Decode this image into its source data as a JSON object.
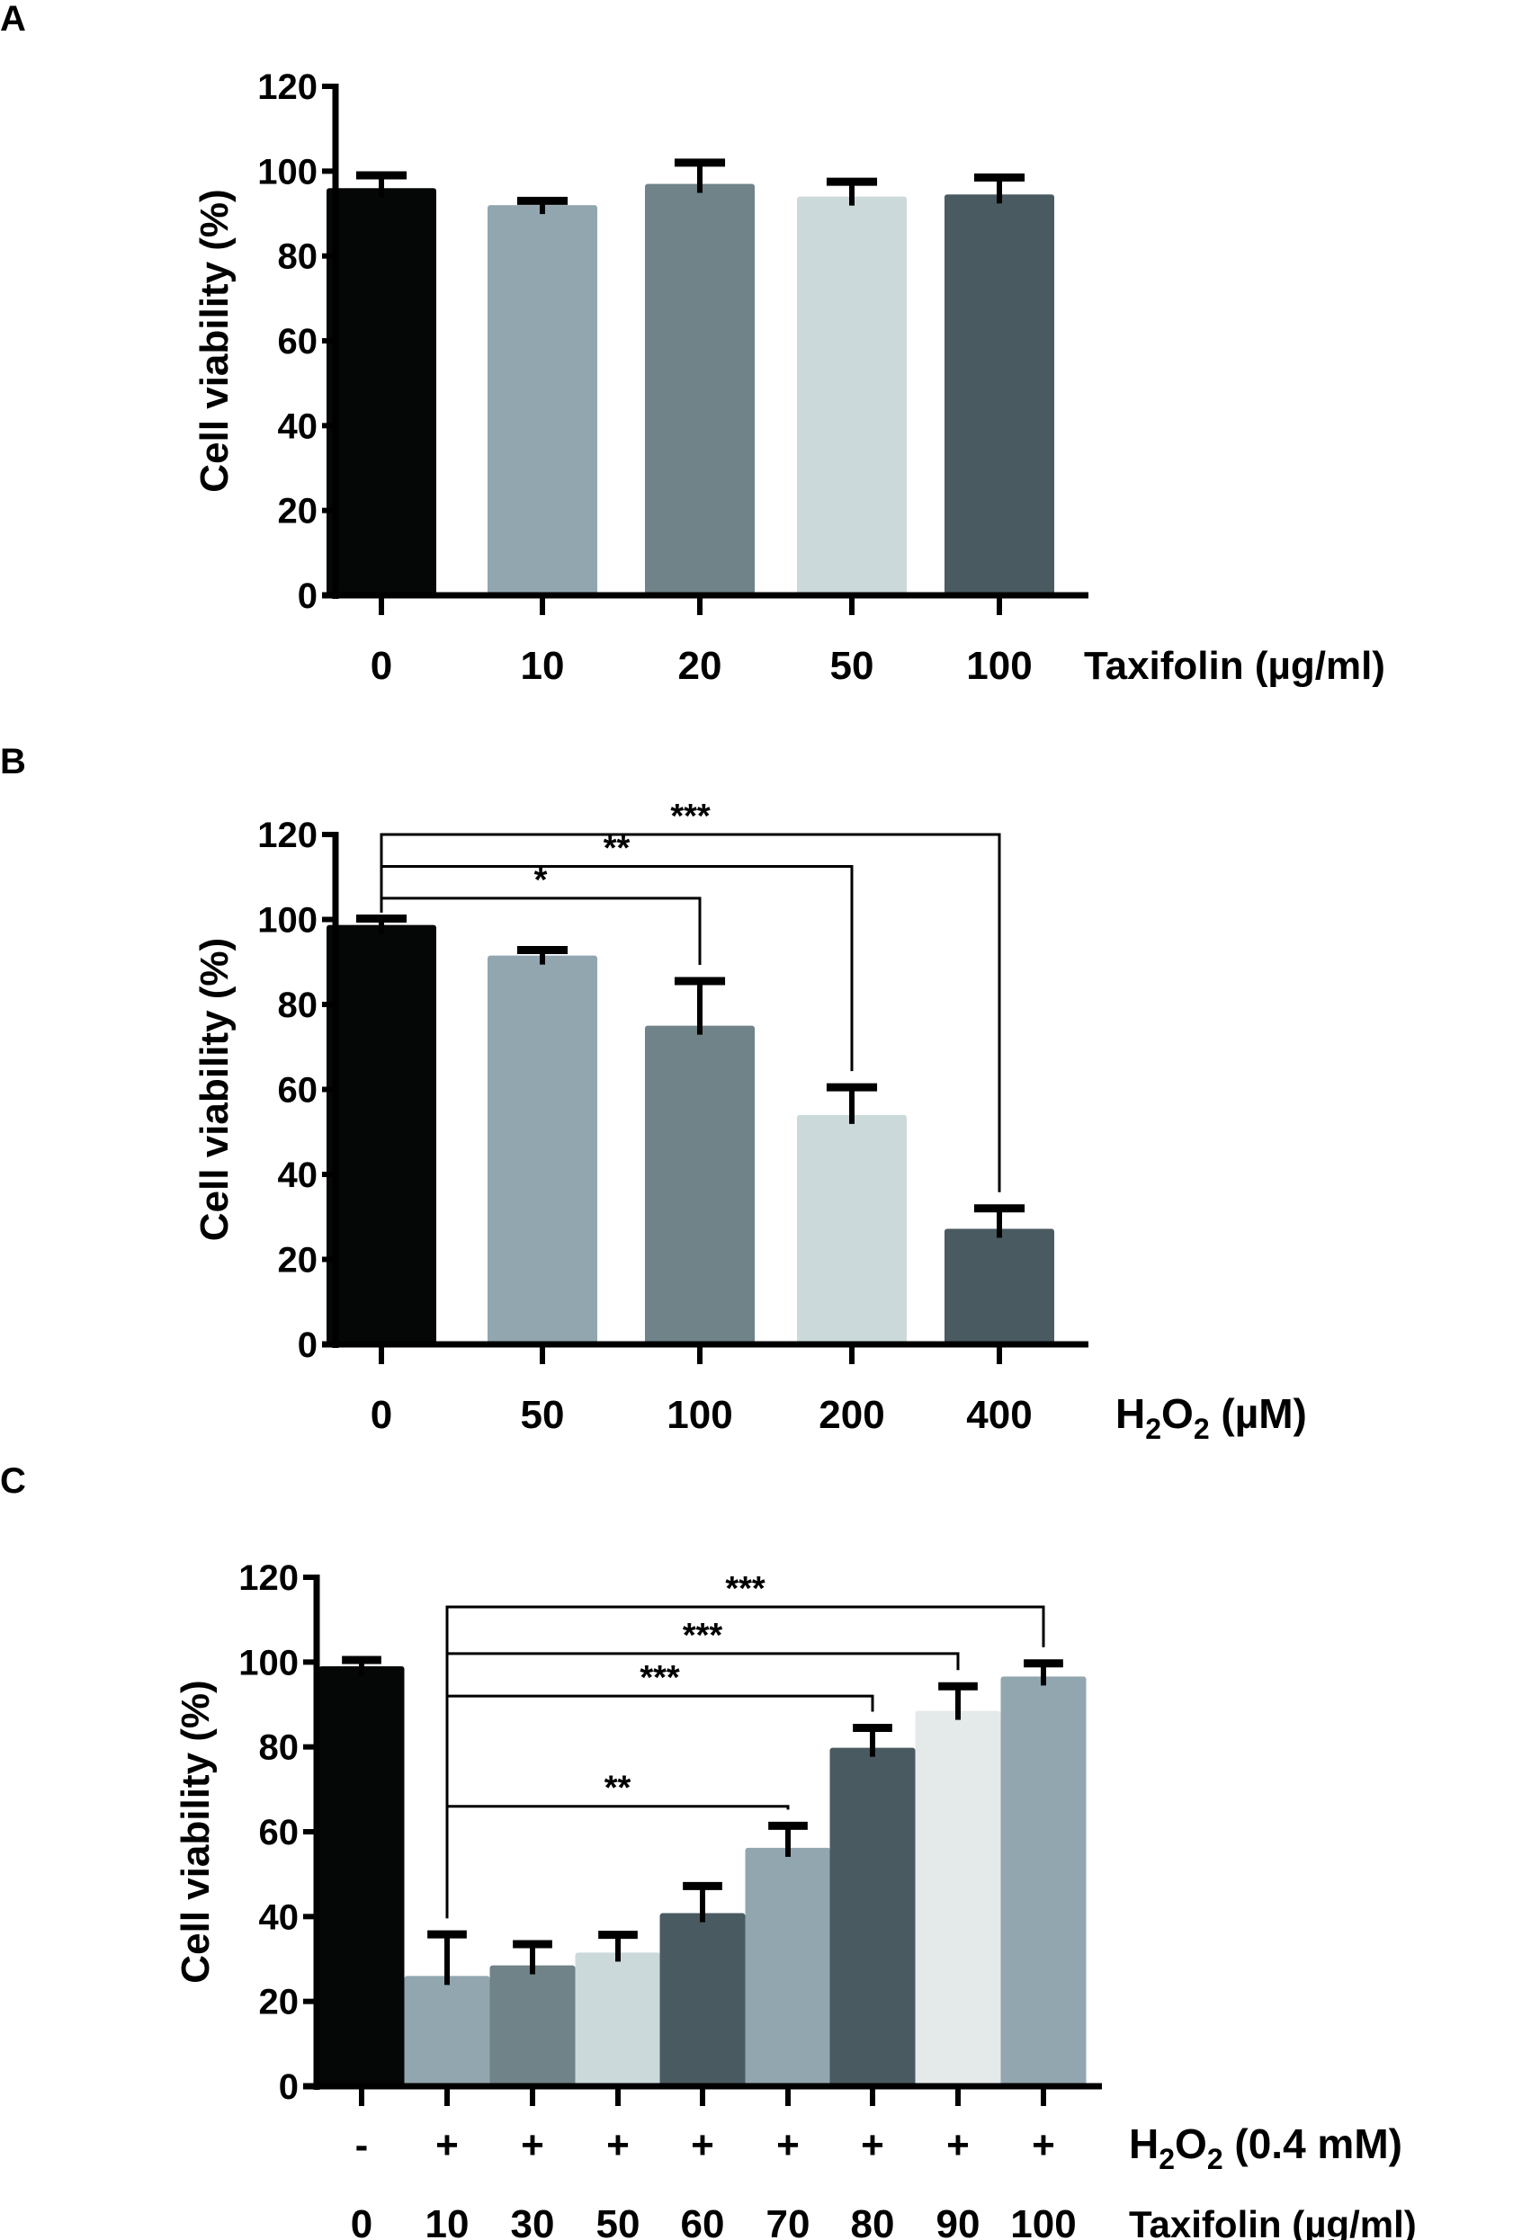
{
  "chart_data": [
    {
      "panel": "A",
      "type": "bar",
      "title": "",
      "xlabel": "Taxifolin (µg/ml)",
      "ylabel": "Cell viability (%)",
      "ylim": [
        0,
        120
      ],
      "yticks": [
        0,
        20,
        40,
        60,
        80,
        100,
        120
      ],
      "categories": [
        "0",
        "10",
        "20",
        "50",
        "100"
      ],
      "values": [
        96,
        92,
        97,
        94,
        94.5
      ],
      "errors": [
        3,
        1,
        5,
        3.5,
        4
      ],
      "colors": [
        "#050706",
        "#92a6b0",
        "#6f8388",
        "#ccd9da",
        "#4a5a61"
      ],
      "significance": []
    },
    {
      "panel": "B",
      "type": "bar",
      "title": "",
      "xlabel": "H2O2 (µM)",
      "xlabel_parts": {
        "main": "H",
        "sub1": "2",
        "mid": "O",
        "sub2": "2",
        "unit": " (µM)"
      },
      "ylabel": "Cell viability (%)",
      "ylim": [
        0,
        120
      ],
      "yticks": [
        0,
        20,
        40,
        60,
        80,
        100,
        120
      ],
      "categories": [
        "0",
        "50",
        "100",
        "200",
        "400"
      ],
      "values": [
        98.7,
        91.5,
        75,
        54,
        27.2
      ],
      "errors": [
        1.5,
        1.3,
        10.5,
        6.5,
        4.8
      ],
      "colors": [
        "#050706",
        "#92a6b0",
        "#6f8388",
        "#ccd9da",
        "#4a5a61"
      ],
      "significance": [
        {
          "from": 0,
          "to": 2,
          "label": "*",
          "level": 105
        },
        {
          "from": 0,
          "to": 3,
          "label": "**",
          "level": 112.5
        },
        {
          "from": 0,
          "to": 4,
          "label": "***",
          "level": 120
        }
      ]
    },
    {
      "panel": "C",
      "type": "bar",
      "title": "",
      "xlabel": "Taxifolin (µg/ml)",
      "xlabel_row1": "H2O2 (0.4 mM)",
      "xlabel_row1_parts": {
        "main": "H",
        "sub1": "2",
        "mid": "O",
        "sub2": "2",
        "unit": " (0.4 mM)"
      },
      "ylabel": "Cell viability (%)",
      "ylim": [
        0,
        120
      ],
      "yticks": [
        0,
        20,
        40,
        60,
        80,
        100,
        120
      ],
      "h2o2_row": [
        "-",
        "+",
        "+",
        "+",
        "+",
        "+",
        "+",
        "+",
        "+"
      ],
      "categories": [
        "0",
        "10",
        "30",
        "50",
        "60",
        "70",
        "80",
        "90",
        "100"
      ],
      "values": [
        99,
        26,
        28.5,
        31.5,
        40.8,
        56.2,
        79.8,
        88.5,
        96.6
      ],
      "errors": [
        1.5,
        9.8,
        5,
        4.2,
        6.4,
        5.2,
        4.7,
        5.8,
        3.1
      ],
      "colors": [
        "#050706",
        "#92a6b0",
        "#6f8388",
        "#ccd9da",
        "#4a5a61",
        "#92a6b0",
        "#4a5a61",
        "#e4e9e9",
        "#92a6b0"
      ],
      "significance": [
        {
          "from": 1,
          "to": 5,
          "label": "**",
          "level": 66
        },
        {
          "from": 1,
          "to": 6,
          "label": "***",
          "level": 92
        },
        {
          "from": 1,
          "to": 7,
          "label": "***",
          "level": 102
        },
        {
          "from": 1,
          "to": 8,
          "label": "***",
          "level": 113
        }
      ]
    }
  ],
  "panel_labels": [
    "A",
    "B",
    "C"
  ]
}
